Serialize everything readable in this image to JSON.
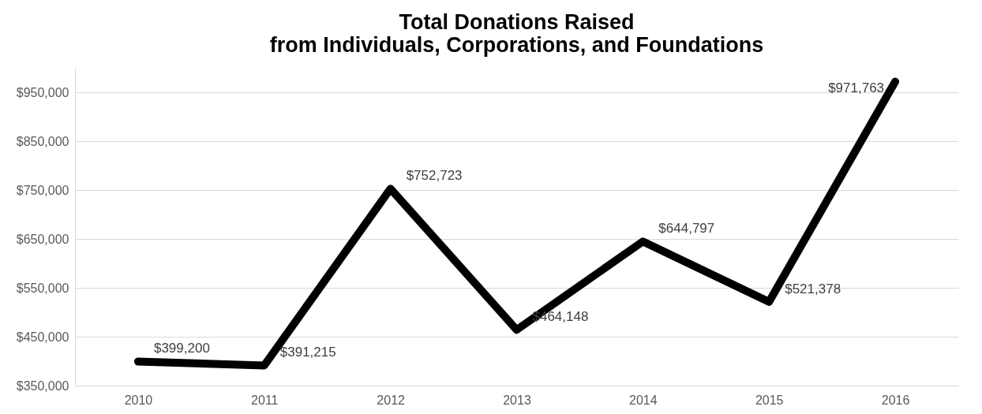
{
  "chart_data": {
    "type": "line",
    "title": "Total Donations Raised\nfrom Individuals, Corporations, and Foundations",
    "categories": [
      "2010",
      "2011",
      "2012",
      "2013",
      "2014",
      "2015",
      "2016"
    ],
    "series": [
      {
        "color": "#000000",
        "values": [
          399200,
          391215,
          752723,
          464148,
          644797,
          521378,
          971763
        ],
        "value_labels": [
          "$399,200",
          "$391,215",
          "$752,723",
          "$464,148",
          "$644,797",
          "$521,378",
          "$971,763"
        ]
      }
    ],
    "ylim": [
      350000,
      1000000
    ],
    "yticks": [
      {
        "value": 350000,
        "label": "$350,000"
      },
      {
        "value": 450000,
        "label": "$450,000"
      },
      {
        "value": 550000,
        "label": "$550,000"
      },
      {
        "value": 650000,
        "label": "$650,000"
      },
      {
        "value": 750000,
        "label": "$750,000"
      },
      {
        "value": 850000,
        "label": "$850,000"
      },
      {
        "value": 950000,
        "label": "$950,000"
      }
    ],
    "grid": "y",
    "marker": "none",
    "line_style": "solid"
  }
}
